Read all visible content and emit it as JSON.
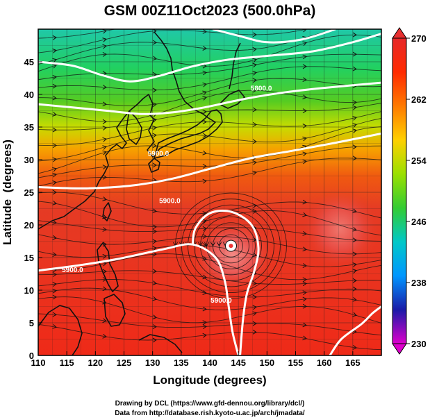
{
  "chart_data": {
    "type": "heatmap",
    "title": "GSM 00Z11Oct2023 (500.0hPa)",
    "xlabel": "Longitude (degrees)",
    "ylabel": "Latitude  (degrees)",
    "xlim": [
      110,
      170
    ],
    "ylim": [
      0,
      50
    ],
    "x_ticks": [
      "110",
      "115",
      "120",
      "125",
      "130",
      "135",
      "140",
      "145",
      "150",
      "155",
      "160",
      "165"
    ],
    "y_ticks": [
      "0",
      "5",
      "10",
      "15",
      "20",
      "25",
      "30",
      "35",
      "40",
      "45"
    ],
    "colorbar": {
      "min": 230,
      "max": 270,
      "ticks": [
        "230",
        "238",
        "246",
        "254",
        "262",
        "270"
      ],
      "colors": [
        "#dd00cc",
        "#1a1aa8",
        "#0096ff",
        "#00c8c8",
        "#33cc33",
        "#9be000",
        "#ffd000",
        "#ff7a00",
        "#ff2a00",
        "#e62828"
      ]
    },
    "contours": [
      {
        "label": "5900.0",
        "points": [
          [
            110,
            38.5
          ],
          [
            116,
            38.0
          ],
          [
            122,
            37.5
          ],
          [
            128,
            37.0
          ],
          [
            133,
            37.2
          ],
          [
            139,
            38.0
          ],
          [
            146,
            39.3
          ],
          [
            153,
            40.3
          ],
          [
            160,
            41.0
          ],
          [
            170,
            41.8
          ]
        ]
      },
      {
        "label": "5800.0",
        "points": [
          [
            110,
            45.0
          ],
          [
            116,
            44.4
          ],
          [
            121,
            43.0
          ],
          [
            126,
            42.0
          ],
          [
            131,
            42.8
          ],
          [
            137,
            44.3
          ],
          [
            143,
            45.3
          ],
          [
            150,
            45.9
          ],
          [
            158,
            46.6
          ],
          [
            165,
            48.0
          ],
          [
            170,
            49.3
          ]
        ]
      },
      {
        "label": "5900.0",
        "points": [
          [
            110,
            25.8
          ],
          [
            118,
            25.6
          ],
          [
            126,
            26.0
          ],
          [
            133,
            27.0
          ],
          [
            140,
            28.6
          ],
          [
            147,
            30.2
          ],
          [
            154,
            31.3
          ],
          [
            162,
            32.6
          ],
          [
            170,
            34.0
          ]
        ]
      },
      {
        "label": "5900.0",
        "points": [
          [
            110,
            13.0
          ],
          [
            117,
            13.8
          ],
          [
            124,
            14.8
          ],
          [
            132,
            16.3
          ],
          [
            137,
            17.0
          ],
          [
            141,
            15.0
          ],
          [
            142.6,
            11.5
          ],
          [
            143.3,
            7.5
          ],
          [
            144.0,
            3.5
          ],
          [
            145.0,
            0.0
          ]
        ]
      },
      {
        "label": "",
        "points": [
          [
            137,
            17.0
          ],
          [
            137.5,
            19.5
          ],
          [
            140.0,
            21.8
          ],
          [
            143.8,
            22.0
          ],
          [
            147.3,
            20.0
          ],
          [
            148.5,
            16.5
          ],
          [
            147.8,
            13.0
          ],
          [
            146.5,
            9.5
          ],
          [
            145.8,
            5.5
          ],
          [
            145.3,
            0.0
          ]
        ]
      },
      {
        "label": "",
        "points": [
          [
            161,
            0
          ],
          [
            163,
            2.5
          ],
          [
            166.5,
            4.8
          ],
          [
            168.5,
            6.5
          ],
          [
            170,
            7.5
          ]
        ]
      },
      {
        "label": "",
        "points": [
          [
            140.5,
            50
          ],
          [
            145,
            49.0
          ],
          [
            150,
            48.0
          ],
          [
            156,
            48.4
          ],
          [
            162,
            50
          ]
        ]
      }
    ],
    "contour_labels": [
      {
        "text": "5800.0",
        "x": 149,
        "y": 41.0
      },
      {
        "text": "5900.0",
        "x": 131,
        "y": 31.0
      },
      {
        "text": "5900.0",
        "x": 133,
        "y": 23.8
      },
      {
        "text": "5900.0",
        "x": 116,
        "y": 13.2
      },
      {
        "text": "5900.0",
        "x": 142,
        "y": 8.5
      }
    ],
    "vortex": {
      "x": 143.7,
      "y": 16.8
    }
  },
  "footer": {
    "line1": "Drawing by DCL (https://www.gfd-dennou.org/library/dcl/)",
    "line2": "Data from http://database.rish.kyoto-u.ac.jp/arch/jmadata/"
  }
}
